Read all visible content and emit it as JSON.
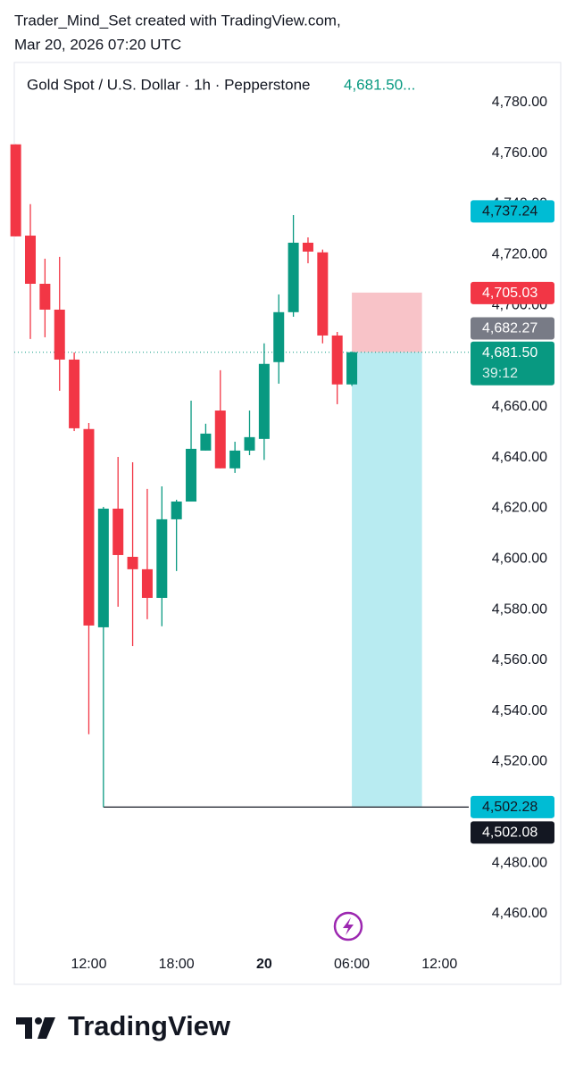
{
  "header": {
    "line1": "Trader_Mind_Set created with TradingView.com,",
    "line2": "Mar 20, 2026 07:20 UTC"
  },
  "chart_data": {
    "type": "candlestick",
    "title": "Gold Spot / U.S. Dollar · 1h · Pepperstone",
    "last_price_label": "4,681.50...",
    "up_color": "#089981",
    "down_color": "#f23645",
    "x": [
      7,
      8,
      9,
      10,
      11,
      12,
      13,
      14,
      15,
      16,
      17,
      18,
      19,
      20,
      21,
      22,
      23,
      24,
      25,
      26,
      27,
      28,
      29,
      30
    ],
    "open": [
      4763.5,
      4727.5,
      4708.5,
      4698.3,
      4678.6,
      4651.2,
      4573.0,
      4619.8,
      4600.8,
      4595.9,
      4584.6,
      4615.6,
      4622.6,
      4642.7,
      4658.5,
      4635.7,
      4642.7,
      4647.3,
      4677.6,
      4697.3,
      4724.7,
      4720.9,
      4688.1,
      4668.8
    ],
    "high": [
      4763.5,
      4739.9,
      4718.4,
      4719.1,
      4681.4,
      4653.6,
      4620.5,
      4640.2,
      4638.1,
      4627.6,
      4628.6,
      4623.3,
      4662.4,
      4653.3,
      4674.4,
      4646.2,
      4658.5,
      4685.0,
      4704.3,
      4735.6,
      4726.8,
      4722.0,
      4689.5,
      4681.8
    ],
    "low": [
      4727.2,
      4686.7,
      4687.4,
      4666.3,
      4650.4,
      4530.8,
      4502.08,
      4581.1,
      4565.6,
      4576.2,
      4573.4,
      4595.2,
      4622.6,
      4642.7,
      4635.7,
      4633.9,
      4640.9,
      4639.0,
      4669.1,
      4695.5,
      4716.6,
      4685.0,
      4661.0,
      4668.2
    ],
    "close": [
      4727.2,
      4708.5,
      4698.3,
      4678.6,
      4651.5,
      4573.7,
      4619.8,
      4601.5,
      4595.9,
      4584.6,
      4615.6,
      4622.6,
      4643.4,
      4649.4,
      4635.7,
      4642.7,
      4648.0,
      4676.9,
      4697.3,
      4724.7,
      4721.2,
      4688.1,
      4668.8,
      4681.5
    ],
    "xlim": [
      6.9,
      38
    ],
    "xticks": [
      {
        "value": 12,
        "label": "12:00"
      },
      {
        "value": 18,
        "label": "18:00"
      },
      {
        "value": 24,
        "label": "20"
      },
      {
        "value": 30,
        "label": "06:00"
      },
      {
        "value": 36,
        "label": "12:00"
      }
    ],
    "ylim": [
      4447.3,
      4795.8
    ],
    "yticks": [
      {
        "value": 4780,
        "label": "4,780.00"
      },
      {
        "value": 4760,
        "label": "4,760.00"
      },
      {
        "value": 4740,
        "label": "4,740.00"
      },
      {
        "value": 4720,
        "label": "4,720.00"
      },
      {
        "value": 4700,
        "label": "4,700.00"
      },
      {
        "value": 4680,
        "label": "4,680.00"
      },
      {
        "value": 4660,
        "label": "4,660.00"
      },
      {
        "value": 4640,
        "label": "4,640.00"
      },
      {
        "value": 4620,
        "label": "4,620.00"
      },
      {
        "value": 4600,
        "label": "4,600.00"
      },
      {
        "value": 4580,
        "label": "4,580.00"
      },
      {
        "value": 4560,
        "label": "4,560.00"
      },
      {
        "value": 4540,
        "label": "4,540.00"
      },
      {
        "value": 4520,
        "label": "4,520.00"
      },
      {
        "value": 4500,
        "label": "4,500.00"
      },
      {
        "value": 4480,
        "label": "4,480.00"
      },
      {
        "value": 4460,
        "label": "4,460.00"
      }
    ],
    "position": {
      "stop": 4705.03,
      "entry": 4681.5,
      "target": 4502.28,
      "end_x": 34.8,
      "stop_color": "#f8c3c8",
      "target_color": "#b8ebf1"
    },
    "markers": [
      {
        "value": 4737.24,
        "label": "4,737.24",
        "color": "#00bcd4",
        "text_color": "#131722"
      },
      {
        "value": 4705.03,
        "label": "4,705.03",
        "color": "#f23645",
        "text_color": "#ffffff"
      },
      {
        "value": 4682.27,
        "label": "4,682.27",
        "color": "#787b86",
        "text_color": "#ffffff"
      },
      {
        "value": 4681.5,
        "label": "4,681.50",
        "color": "#089981",
        "text_color": "#ffffff"
      },
      {
        "value": 4502.28,
        "label": "4,502.28",
        "color": "#00bcd4",
        "text_color": "#131722"
      },
      {
        "value": 4502.08,
        "label": "4,502.08",
        "color": "#131722",
        "text_color": "#ffffff"
      }
    ],
    "countdown": "39:12"
  },
  "footer": {
    "brand": "TradingView"
  }
}
